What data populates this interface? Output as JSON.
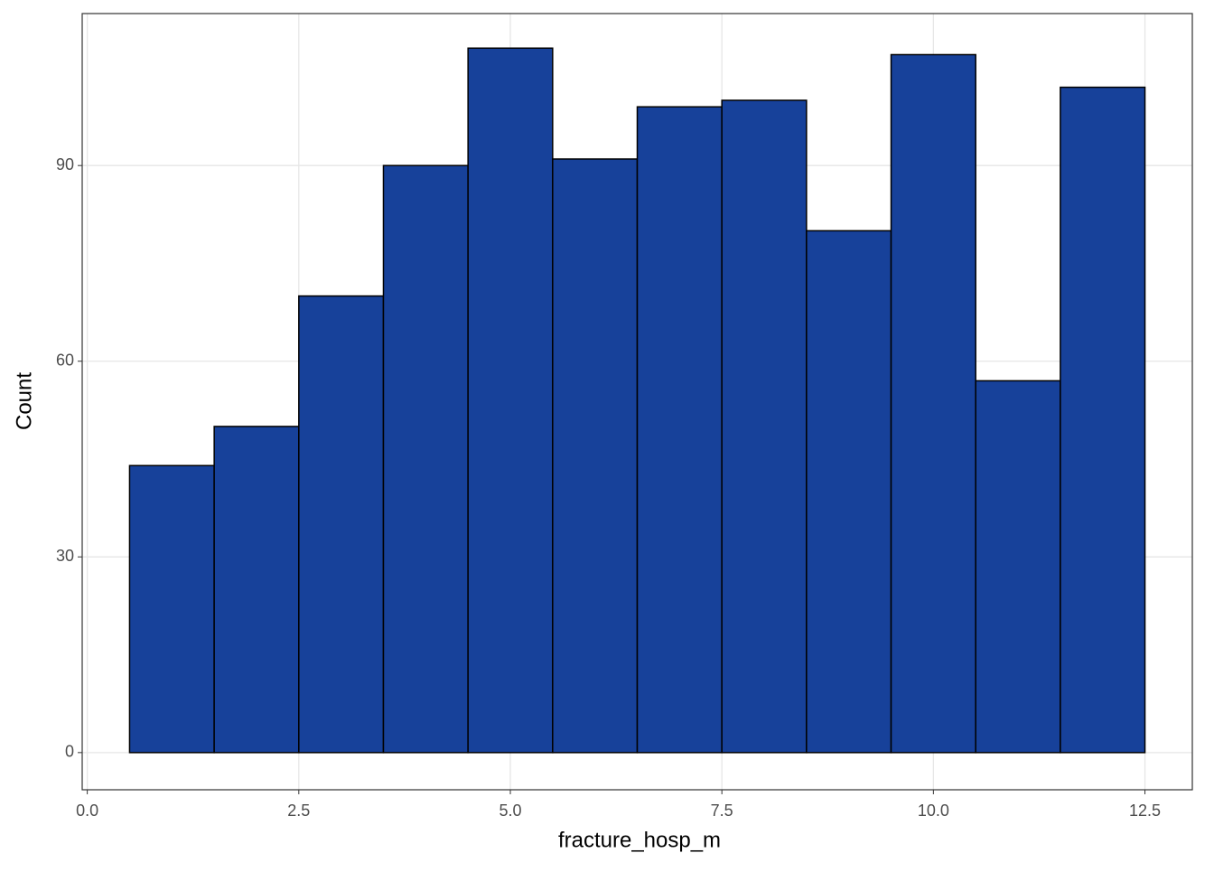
{
  "chart_data": {
    "type": "histogram",
    "x_label": "fracture_hosp_m",
    "y_label": "Count",
    "bins": [
      0.5,
      1.5,
      2.5,
      3.5,
      4.5,
      5.5,
      6.5,
      7.5,
      8.5,
      9.5,
      10.5,
      11.5,
      12.5
    ],
    "values": [
      44,
      50,
      70,
      90,
      108,
      91,
      99,
      100,
      80,
      107,
      57,
      102
    ],
    "color": "#17419a",
    "edge_color": "#000000",
    "xlim": [
      -0.06,
      13.06
    ],
    "ylim": [
      -5.7,
      113.3
    ],
    "xticks": [
      {
        "value": 0,
        "label": "0.0"
      },
      2.5,
      {
        "value": 5,
        "label": "5.0"
      },
      7.5,
      {
        "value": 10,
        "label": "10.0"
      },
      12.5
    ],
    "yticks": [
      0,
      30,
      60,
      90
    ],
    "grid": true
  }
}
